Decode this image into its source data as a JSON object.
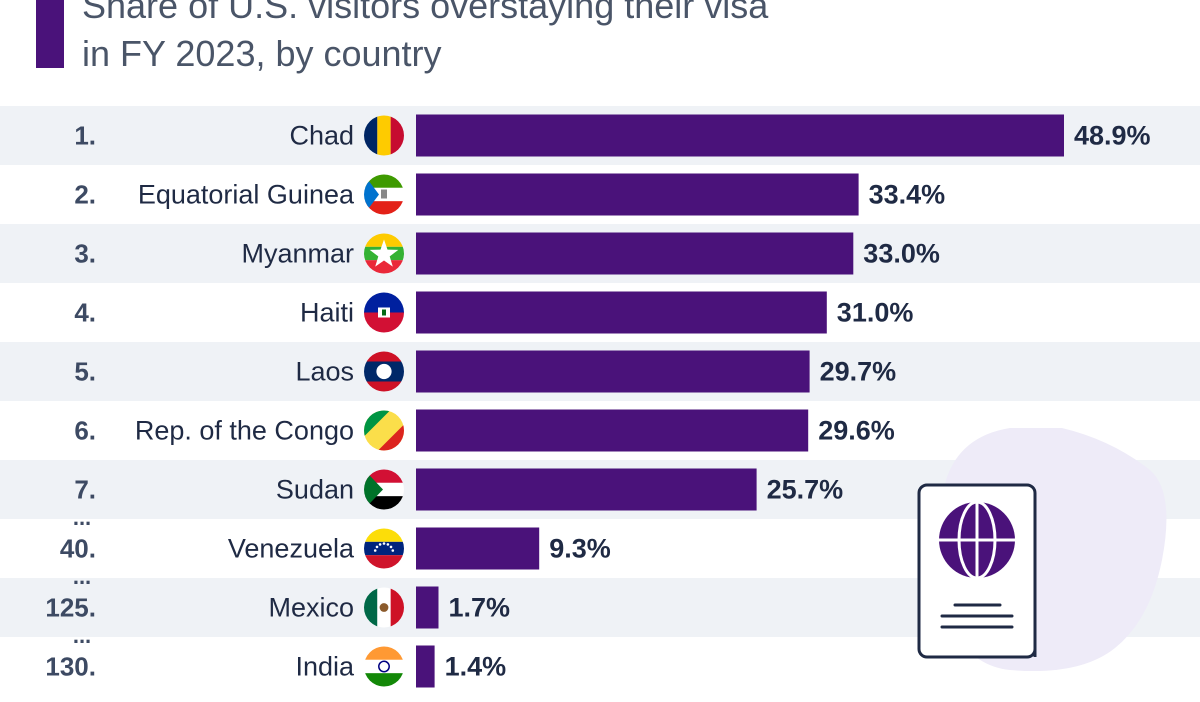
{
  "title_lines": [
    "Share of U.S. visitors overstaying their visa",
    "in FY 2023, by country"
  ],
  "colors": {
    "accent": "#4a127a",
    "bar": "#4a127a",
    "stripe": "#eff2f6",
    "text": "#1f2a44",
    "rank_text": "#3d4a63",
    "decoration_blob": "#eeebf8"
  },
  "chart_data": {
    "type": "bar",
    "orientation": "horizontal",
    "title": "Share of U.S. visitors overstaying their visa in FY 2023, by country",
    "unit": "%",
    "xlim": [
      0,
      48.9
    ],
    "grid": false,
    "ranks": [
      "1.",
      "2.",
      "3.",
      "4.",
      "5.",
      "6.",
      "7.",
      "40.",
      "125.",
      "130."
    ],
    "categories": [
      "Chad",
      "Equatorial Guinea",
      "Myanmar",
      "Haiti",
      "Laos",
      "Rep. of the Congo",
      "Sudan",
      "Venezuela",
      "Mexico",
      "India"
    ],
    "values": [
      48.9,
      33.4,
      33.0,
      31.0,
      29.7,
      29.6,
      25.7,
      9.3,
      1.7,
      1.4
    ],
    "value_labels": [
      "48.9%",
      "33.4%",
      "33.0%",
      "31.0%",
      "29.7%",
      "29.6%",
      "25.7%",
      "9.3%",
      "1.7%",
      "1.4%"
    ],
    "ellipsis_before": [
      "Venezuela",
      "Mexico",
      "India"
    ],
    "ellipsis_text": "...",
    "flag_icons": [
      "chad-flag-icon",
      "equatorial-guinea-flag-icon",
      "myanmar-flag-icon",
      "haiti-flag-icon",
      "laos-flag-icon",
      "congo-flag-icon",
      "sudan-flag-icon",
      "venezuela-flag-icon",
      "mexico-flag-icon",
      "india-flag-icon"
    ]
  },
  "decoration": {
    "icon": "passport-icon"
  }
}
